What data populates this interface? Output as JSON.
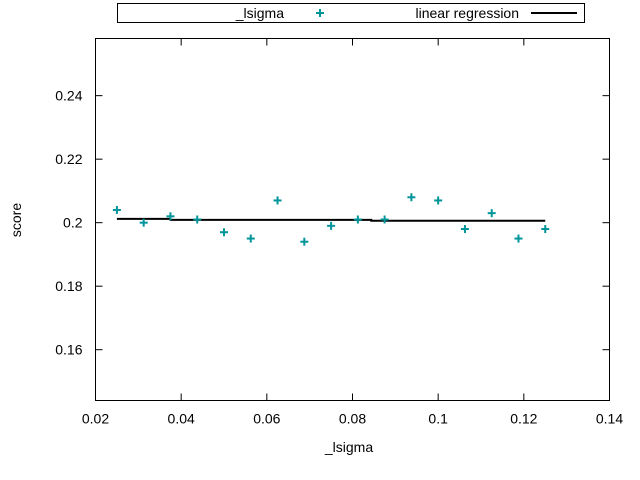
{
  "chart_data": {
    "type": "scatter",
    "title": "",
    "xlabel": "_lsigma",
    "ylabel": "score",
    "xlim": [
      0.02,
      0.14
    ],
    "ylim": [
      0.144,
      0.258
    ],
    "xticks": [
      0.02,
      0.04,
      0.06,
      0.08,
      0.1,
      0.12,
      0.14
    ],
    "xtick_labels": [
      "0.02",
      "0.04",
      "0.06",
      "0.08",
      "0.1",
      "0.12",
      "0.14"
    ],
    "yticks": [
      0.16,
      0.18,
      0.2,
      0.22,
      0.24
    ],
    "ytick_labels": [
      "0.16",
      "0.18",
      "0.2",
      "0.22",
      "0.24"
    ],
    "grid": false,
    "legend_placement": "top",
    "series": [
      {
        "name": "_lsigma",
        "kind": "scatter",
        "marker": "plus",
        "color": "#00959a",
        "x": [
          0.025,
          0.03125,
          0.0375,
          0.04375,
          0.05,
          0.05625,
          0.0625,
          0.06875,
          0.075,
          0.08125,
          0.0875,
          0.09375,
          0.1,
          0.10625,
          0.1125,
          0.11875,
          0.125
        ],
        "y": [
          0.204,
          0.2,
          0.202,
          0.201,
          0.197,
          0.195,
          0.207,
          0.194,
          0.199,
          0.201,
          0.201,
          0.208,
          0.207,
          0.198,
          0.203,
          0.195,
          0.198
        ]
      },
      {
        "name": "linear regression",
        "kind": "line",
        "color": "#000000",
        "x": [
          0.025,
          0.0375,
          0.0375,
          0.08438,
          0.08438,
          0.125
        ],
        "y": [
          0.2012,
          0.2012,
          0.2009,
          0.2009,
          0.2006,
          0.2006
        ]
      }
    ]
  }
}
